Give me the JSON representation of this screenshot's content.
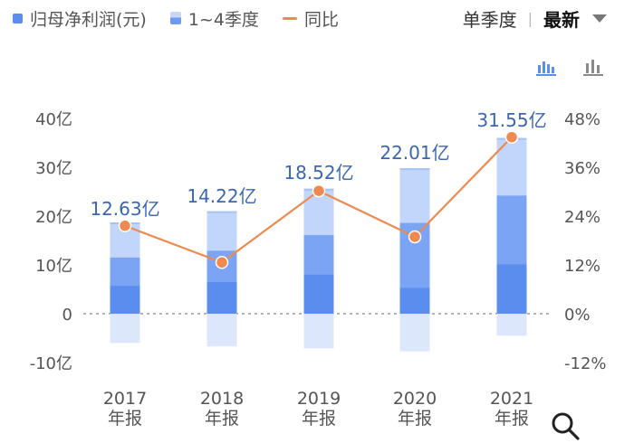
{
  "legend": {
    "net_profit_label": "归母净利润(元)",
    "quarters_label": "1~4季度",
    "yoy_label": "同比"
  },
  "controls": {
    "period_label": "单季度",
    "separator": "|",
    "latest_label": "最新"
  },
  "icons": {
    "grouped_view": "bar-chart-active-icon",
    "bar_view": "bar-chart-icon",
    "search": "search-icon",
    "dropdown": "chevron-down-icon"
  },
  "colors": {
    "annual_bar": "#c2d5fb",
    "q1": "#5b8def",
    "q2": "#7ba4f4",
    "q3": "#9fbdf7",
    "negative_bar": "#dde7fb",
    "yoy_line": "#ee8a4f",
    "value_label": "#3b66b0",
    "axis_text": "#555555"
  },
  "chart_data": {
    "type": "bar",
    "categories": [
      "2017\n年报",
      "2018\n年报",
      "2019\n年报",
      "2020\n年报",
      "2021\n年报"
    ],
    "category_years": [
      "2017",
      "2018",
      "2019",
      "2020",
      "2021"
    ],
    "category_suffix": "年报",
    "annual_value_labels": [
      "12.63亿",
      "14.22亿",
      "18.52亿",
      "22.01亿",
      "31.55亿"
    ],
    "y_left": {
      "ticks": [
        -10,
        0,
        10,
        20,
        30,
        40
      ],
      "tick_labels": [
        "-10亿",
        "0",
        "10亿",
        "20亿",
        "30亿",
        "40亿"
      ],
      "ylim": [
        -10,
        40
      ]
    },
    "y_right": {
      "ticks": [
        -12,
        0,
        12,
        24,
        36,
        48
      ],
      "tick_labels": [
        "-12%",
        "0%",
        "12%",
        "24%",
        "36%",
        "48%"
      ],
      "ylim": [
        -12,
        48
      ]
    },
    "series": [
      {
        "name": "1~4季度",
        "kind": "stacked_bar_segments",
        "stacks": [
          {
            "pos": [
              5.7,
              5.8,
              7.2
            ],
            "neg": [
              -6.0
            ]
          },
          {
            "pos": [
              6.5,
              6.4,
              8.1
            ],
            "neg": [
              -6.7
            ]
          },
          {
            "pos": [
              8.0,
              8.1,
              9.5
            ],
            "neg": [
              -7.1
            ]
          },
          {
            "pos": [
              5.3,
              13.3,
              11.2
            ],
            "neg": [
              -7.7
            ]
          },
          {
            "pos": [
              10.1,
              14.1,
              11.8
            ],
            "neg": [
              -4.5
            ]
          }
        ]
      },
      {
        "name": "同比",
        "kind": "line",
        "axis": "right",
        "values": [
          21.6,
          12.6,
          30.2,
          18.9,
          43.4
        ]
      }
    ],
    "grid": "dashed zero line only",
    "legend_position": "top-left"
  }
}
